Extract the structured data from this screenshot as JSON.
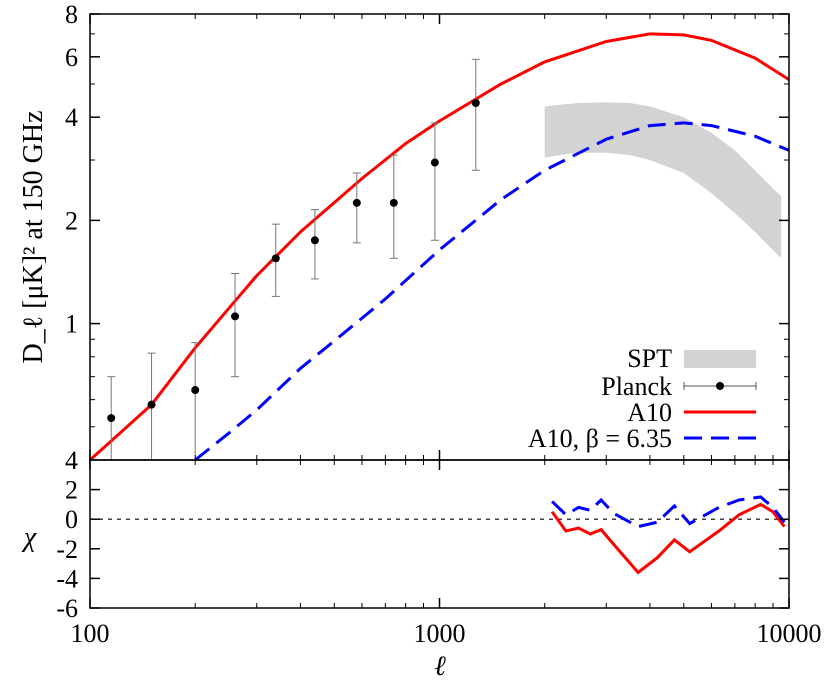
{
  "chart_data": [
    {
      "panel": "top",
      "type": "line",
      "xlabel": "ℓ",
      "ylabel": "D_ℓ [μK]² at 150 GHz",
      "xscale": "log",
      "yscale": "log",
      "xlim": [
        100,
        10000
      ],
      "ylim": [
        0.4,
        8
      ],
      "y_ticks": [
        {
          "value": 1,
          "label": "1"
        },
        {
          "value": 2,
          "label": "2"
        },
        {
          "value": 4,
          "label": "4"
        },
        {
          "value": 6,
          "label": "6"
        },
        {
          "value": 8,
          "label": "8"
        }
      ],
      "y_bottom_label": "4",
      "legend_position": "bottom-right",
      "series": [
        {
          "name": "SPT",
          "kind": "band",
          "color": "#d3d3d3",
          "x": [
            2000,
            2200,
            2500,
            3000,
            3500,
            4000,
            5000,
            6000,
            7000,
            8000,
            9500
          ],
          "upper": [
            4.3,
            4.35,
            4.4,
            4.42,
            4.4,
            4.3,
            4.0,
            3.6,
            3.2,
            2.8,
            2.35
          ],
          "lower": [
            3.05,
            3.1,
            3.15,
            3.15,
            3.1,
            3.0,
            2.75,
            2.4,
            2.1,
            1.85,
            1.55
          ]
        },
        {
          "name": "Planck",
          "kind": "errorbar",
          "color": "#000000",
          "x": [
            115,
            150,
            200,
            260,
            340,
            440,
            580,
            740,
            970,
            1270
          ],
          "y": [
            0.53,
            0.58,
            0.64,
            1.05,
            1.55,
            1.75,
            2.25,
            2.25,
            2.95,
            4.4
          ],
          "yerr_low": [
            0.37,
            0.38,
            0.38,
            0.7,
            1.2,
            1.35,
            1.72,
            1.55,
            1.75,
            2.8
          ],
          "yerr_high": [
            0.7,
            0.82,
            0.88,
            1.4,
            1.95,
            2.15,
            2.75,
            3.1,
            3.85,
            5.9
          ]
        },
        {
          "name": "A10",
          "kind": "line",
          "color": "#ff0000",
          "dash": "solid",
          "x": [
            100,
            150,
            200,
            300,
            400,
            600,
            800,
            1000,
            1500,
            2000,
            3000,
            4000,
            5000,
            6000,
            8000,
            10000
          ],
          "y": [
            0.4,
            0.58,
            0.85,
            1.38,
            1.85,
            2.65,
            3.35,
            3.9,
            5.0,
            5.8,
            6.65,
            7.0,
            6.95,
            6.7,
            5.95,
            5.15
          ]
        },
        {
          "name": "A10, β = 6.35",
          "kind": "line",
          "color": "#0000ff",
          "dash": "dashed",
          "x": [
            200,
            250,
            300,
            400,
            500,
            700,
            1000,
            1500,
            2000,
            3000,
            4000,
            5000,
            6000,
            8000,
            10000
          ],
          "y": [
            0.4,
            0.48,
            0.56,
            0.74,
            0.89,
            1.18,
            1.64,
            2.3,
            2.8,
            3.45,
            3.78,
            3.85,
            3.78,
            3.52,
            3.2
          ]
        }
      ],
      "legend": [
        "SPT",
        "Planck",
        "A10",
        "A10, β = 6.35"
      ]
    },
    {
      "panel": "bottom",
      "type": "line",
      "xlabel": "ℓ",
      "ylabel": "χ",
      "xscale": "log",
      "xlim": [
        100,
        10000
      ],
      "ylim": [
        -6,
        4
      ],
      "y_ticks": [
        {
          "value": -6,
          "label": "-6"
        },
        {
          "value": -4,
          "label": "-4"
        },
        {
          "value": -2,
          "label": "-2"
        },
        {
          "value": 0,
          "label": "0"
        },
        {
          "value": 2,
          "label": "2"
        }
      ],
      "x_ticks": [
        {
          "value": 100,
          "label": "100"
        },
        {
          "value": 1000,
          "label": "1000"
        },
        {
          "value": 10000,
          "label": "10000"
        }
      ],
      "zero_line": true,
      "series": [
        {
          "name": "A10",
          "color": "#ff0000",
          "dash": "solid",
          "x": [
            2100,
            2300,
            2500,
            2700,
            2900,
            3150,
            3700,
            4200,
            4700,
            5200,
            6300,
            7200,
            8300,
            9000,
            9700
          ],
          "y": [
            0.5,
            -0.8,
            -0.6,
            -1.0,
            -0.7,
            -1.7,
            -3.6,
            -2.6,
            -1.4,
            -2.2,
            -0.8,
            0.3,
            1.0,
            0.5,
            -0.5
          ]
        },
        {
          "name": "A10, β = 6.35",
          "color": "#0000ff",
          "dash": "dashed",
          "x": [
            2100,
            2300,
            2500,
            2700,
            2900,
            3150,
            3700,
            4200,
            4700,
            5200,
            6300,
            7200,
            8300,
            9000,
            9700
          ],
          "y": [
            1.2,
            0.3,
            0.8,
            0.6,
            1.3,
            0.4,
            -0.5,
            -0.2,
            0.9,
            -0.3,
            0.8,
            1.3,
            1.5,
            0.8,
            -0.2
          ]
        }
      ]
    }
  ]
}
